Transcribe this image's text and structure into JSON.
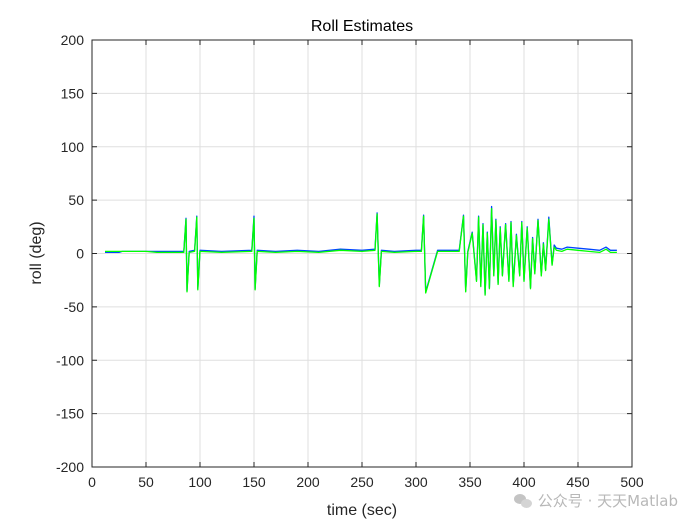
{
  "chart_data": {
    "type": "line",
    "title": "Roll Estimates",
    "xlabel": "time (sec)",
    "ylabel": "roll (deg)",
    "xlim": [
      0,
      500
    ],
    "ylim": [
      -200,
      200
    ],
    "xticks": [
      0,
      50,
      100,
      150,
      200,
      250,
      300,
      350,
      400,
      450,
      500
    ],
    "yticks": [
      -200,
      -150,
      -100,
      -50,
      0,
      50,
      100,
      150,
      200
    ],
    "grid": true,
    "series": [
      {
        "color": "#0044ff",
        "x": [
          12,
          25,
          28,
          50,
          60,
          85,
          87,
          88,
          90,
          95,
          97,
          98,
          100,
          120,
          148,
          150,
          151,
          153,
          170,
          190,
          210,
          230,
          250,
          262,
          264,
          266,
          268,
          280,
          300,
          305,
          307,
          309,
          320,
          340,
          344,
          346,
          348,
          352,
          356,
          358,
          360,
          362,
          364,
          366,
          368,
          370,
          372,
          374,
          376,
          378,
          380,
          383,
          386,
          388,
          390,
          393,
          396,
          398,
          400,
          403,
          406,
          408,
          410,
          413,
          416,
          418,
          420,
          423,
          426,
          428,
          430,
          435,
          440,
          450,
          460,
          470,
          476,
          480,
          486
        ],
        "y": [
          1,
          1,
          2,
          2,
          2,
          2,
          33,
          -35,
          2,
          3,
          35,
          -33,
          3,
          2,
          3,
          35,
          -33,
          3,
          2,
          3,
          2,
          4,
          3,
          4,
          38,
          -30,
          3,
          2,
          3,
          3,
          36,
          -36,
          3,
          3,
          36,
          -35,
          2,
          20,
          -25,
          35,
          -30,
          28,
          -38,
          20,
          -32,
          44,
          -20,
          32,
          -28,
          25,
          -20,
          28,
          -25,
          30,
          -30,
          18,
          -20,
          30,
          -25,
          25,
          -32,
          15,
          -18,
          32,
          -20,
          10,
          -15,
          34,
          -10,
          8,
          5,
          4,
          6,
          5,
          4,
          3,
          6,
          3,
          3
        ]
      },
      {
        "color": "#00ff00",
        "x": [
          12,
          25,
          28,
          50,
          60,
          85,
          87,
          88,
          90,
          95,
          97,
          98,
          100,
          120,
          148,
          150,
          151,
          153,
          170,
          190,
          210,
          230,
          250,
          262,
          264,
          266,
          268,
          280,
          300,
          305,
          307,
          309,
          320,
          340,
          344,
          346,
          348,
          352,
          356,
          358,
          360,
          362,
          364,
          366,
          368,
          370,
          372,
          374,
          376,
          378,
          380,
          383,
          386,
          388,
          390,
          393,
          396,
          398,
          400,
          403,
          406,
          408,
          410,
          413,
          416,
          418,
          420,
          423,
          426,
          428,
          430,
          435,
          440,
          450,
          460,
          470,
          476,
          480,
          486
        ],
        "y": [
          2,
          2,
          2,
          2,
          1,
          1,
          32,
          -36,
          1,
          2,
          34,
          -34,
          2,
          1,
          2,
          33,
          -34,
          2,
          1,
          2,
          1,
          3,
          2,
          3,
          37,
          -31,
          2,
          1,
          2,
          2,
          35,
          -37,
          2,
          2,
          35,
          -36,
          1,
          19,
          -26,
          34,
          -31,
          27,
          -39,
          19,
          -33,
          42,
          -21,
          31,
          -29,
          24,
          -21,
          27,
          -26,
          29,
          -31,
          17,
          -21,
          29,
          -26,
          24,
          -33,
          14,
          -19,
          31,
          -21,
          9,
          -16,
          32,
          -11,
          6,
          3,
          2,
          4,
          3,
          2,
          1,
          4,
          1,
          1
        ]
      }
    ]
  },
  "watermark": "公众号 · 天天Matlab"
}
